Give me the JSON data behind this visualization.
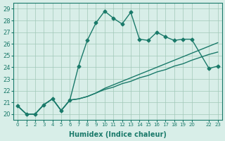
{
  "xlabel": "Humidex (Indice chaleur)",
  "ylabel": "",
  "background_color": "#d8eee8",
  "line_color": "#1a7a6a",
  "grid_color": "#a0c8b8",
  "ylim": [
    19.5,
    29.5
  ],
  "xlim": [
    -0.5,
    23.5
  ],
  "yticks": [
    20,
    21,
    22,
    23,
    24,
    25,
    26,
    27,
    28,
    29
  ],
  "xticks": [
    0,
    1,
    2,
    3,
    4,
    5,
    6,
    7,
    8,
    9,
    10,
    11,
    12,
    13,
    14,
    15,
    16,
    17,
    18,
    19,
    20,
    22,
    23
  ],
  "xtick_labels": [
    "0",
    "1",
    "2",
    "3",
    "4",
    "5",
    "6",
    "7",
    "8",
    "9",
    "10",
    "11",
    "12",
    "13",
    "14",
    "15",
    "16",
    "17",
    "18",
    "19",
    "20",
    "22",
    "23"
  ],
  "series1_x": [
    0,
    1,
    2,
    3,
    4,
    5,
    6,
    7,
    8,
    9,
    10,
    11,
    12,
    13,
    14,
    15,
    16,
    17,
    18,
    19,
    20,
    22,
    23
  ],
  "series1_y": [
    20.7,
    20.0,
    20.0,
    20.8,
    21.3,
    20.3,
    21.2,
    24.1,
    26.3,
    27.8,
    28.8,
    28.2,
    27.7,
    28.7,
    26.4,
    26.3,
    27.0,
    26.6,
    26.3,
    26.4,
    26.4,
    23.9,
    24.1
  ],
  "series2_x": [
    0,
    1,
    2,
    3,
    4,
    5,
    6,
    7,
    8,
    9,
    10,
    11,
    12,
    13,
    14,
    15,
    16,
    17,
    18,
    19,
    20,
    22,
    23
  ],
  "series2_y": [
    20.7,
    20.0,
    20.0,
    20.8,
    21.3,
    20.3,
    21.2,
    21.3,
    21.5,
    21.8,
    22.1,
    22.3,
    22.6,
    22.8,
    23.1,
    23.3,
    23.6,
    23.8,
    24.1,
    24.3,
    24.6,
    25.1,
    25.3
  ],
  "series3_x": [
    0,
    1,
    2,
    3,
    4,
    5,
    6,
    7,
    8,
    9,
    10,
    11,
    12,
    13,
    14,
    15,
    16,
    17,
    18,
    19,
    20,
    22,
    23
  ],
  "series3_y": [
    20.7,
    20.0,
    20.0,
    20.8,
    21.3,
    20.3,
    21.2,
    21.3,
    21.5,
    21.8,
    22.2,
    22.5,
    22.8,
    23.1,
    23.4,
    23.7,
    24.0,
    24.3,
    24.6,
    24.9,
    25.2,
    25.8,
    26.1
  ]
}
